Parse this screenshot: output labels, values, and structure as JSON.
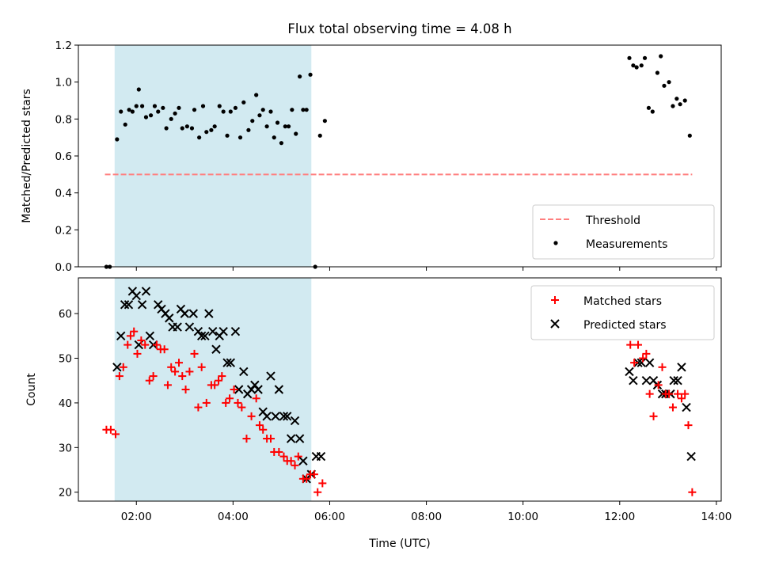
{
  "chart_data": [
    {
      "type": "scatter",
      "title": "Flux total observing time = 4.08 h",
      "xlabel": "",
      "ylabel": "Matched/Predicted stars",
      "ylim": [
        0,
        1.2
      ],
      "yticks": [
        "0.0",
        "0.2",
        "0.4",
        "0.6",
        "0.8",
        "1.0",
        "1.2"
      ],
      "xlim_hours": [
        0.8,
        14.1
      ],
      "highlight_span_hours": [
        1.55,
        5.62
      ],
      "highlight_color": "#add8e6",
      "threshold": {
        "name": "Threshold",
        "value": 0.5,
        "x_range_hours": [
          1.35,
          13.5
        ],
        "color": "#ff7f7f",
        "style": "dashed"
      },
      "series": [
        {
          "name": "Measurements",
          "marker": "dot",
          "color": "#000000",
          "points": [
            [
              1.38,
              0.0
            ],
            [
              1.45,
              0.0
            ],
            [
              1.6,
              0.69
            ],
            [
              1.68,
              0.84
            ],
            [
              1.77,
              0.77
            ],
            [
              1.85,
              0.85
            ],
            [
              1.92,
              0.84
            ],
            [
              2.0,
              0.87
            ],
            [
              2.05,
              0.96
            ],
            [
              2.12,
              0.87
            ],
            [
              2.2,
              0.81
            ],
            [
              2.3,
              0.82
            ],
            [
              2.38,
              0.87
            ],
            [
              2.45,
              0.84
            ],
            [
              2.55,
              0.86
            ],
            [
              2.62,
              0.75
            ],
            [
              2.72,
              0.8
            ],
            [
              2.8,
              0.83
            ],
            [
              2.88,
              0.86
            ],
            [
              2.95,
              0.75
            ],
            [
              3.05,
              0.76
            ],
            [
              3.15,
              0.75
            ],
            [
              3.2,
              0.85
            ],
            [
              3.3,
              0.7
            ],
            [
              3.38,
              0.87
            ],
            [
              3.45,
              0.73
            ],
            [
              3.55,
              0.74
            ],
            [
              3.62,
              0.76
            ],
            [
              3.72,
              0.87
            ],
            [
              3.8,
              0.84
            ],
            [
              3.88,
              0.71
            ],
            [
              3.95,
              0.84
            ],
            [
              4.05,
              0.86
            ],
            [
              4.15,
              0.7
            ],
            [
              4.22,
              0.89
            ],
            [
              4.32,
              0.74
            ],
            [
              4.4,
              0.79
            ],
            [
              4.48,
              0.93
            ],
            [
              4.55,
              0.82
            ],
            [
              4.62,
              0.85
            ],
            [
              4.7,
              0.76
            ],
            [
              4.78,
              0.84
            ],
            [
              4.85,
              0.7
            ],
            [
              4.92,
              0.78
            ],
            [
              5.0,
              0.67
            ],
            [
              5.08,
              0.76
            ],
            [
              5.15,
              0.76
            ],
            [
              5.22,
              0.85
            ],
            [
              5.3,
              0.72
            ],
            [
              5.38,
              1.03
            ],
            [
              5.45,
              0.85
            ],
            [
              5.52,
              0.85
            ],
            [
              5.6,
              1.04
            ],
            [
              5.7,
              0.0
            ],
            [
              5.8,
              0.71
            ],
            [
              5.9,
              0.79
            ],
            [
              12.2,
              1.13
            ],
            [
              12.28,
              1.09
            ],
            [
              12.35,
              1.08
            ],
            [
              12.45,
              1.09
            ],
            [
              12.52,
              1.13
            ],
            [
              12.6,
              0.86
            ],
            [
              12.68,
              0.84
            ],
            [
              12.78,
              1.05
            ],
            [
              12.85,
              1.14
            ],
            [
              12.92,
              0.98
            ],
            [
              13.02,
              1.0
            ],
            [
              13.1,
              0.87
            ],
            [
              13.18,
              0.91
            ],
            [
              13.25,
              0.88
            ],
            [
              13.35,
              0.9
            ],
            [
              13.45,
              0.71
            ]
          ]
        }
      ],
      "legend": {
        "position": "lower-right",
        "entries": [
          "Threshold",
          "Measurements"
        ]
      }
    },
    {
      "type": "scatter",
      "title": "",
      "xlabel": "Time (UTC)",
      "ylabel": "Count",
      "ylim": [
        18,
        68
      ],
      "yticks": [
        "20",
        "30",
        "40",
        "50",
        "60"
      ],
      "xlim_hours": [
        0.8,
        14.1
      ],
      "xticks": [
        "02:00",
        "04:00",
        "06:00",
        "08:00",
        "10:00",
        "12:00",
        "14:00"
      ],
      "highlight_span_hours": [
        1.55,
        5.62
      ],
      "series": [
        {
          "name": "Matched stars",
          "marker": "plus",
          "color": "#ff0000",
          "points": [
            [
              1.38,
              34
            ],
            [
              1.47,
              34
            ],
            [
              1.57,
              33
            ],
            [
              1.65,
              46
            ],
            [
              1.73,
              48
            ],
            [
              1.82,
              53
            ],
            [
              1.88,
              55
            ],
            [
              1.95,
              56
            ],
            [
              2.02,
              51
            ],
            [
              2.1,
              54
            ],
            [
              2.18,
              53
            ],
            [
              2.27,
              45
            ],
            [
              2.35,
              46
            ],
            [
              2.42,
              53
            ],
            [
              2.5,
              52
            ],
            [
              2.58,
              52
            ],
            [
              2.65,
              44
            ],
            [
              2.72,
              48
            ],
            [
              2.8,
              47
            ],
            [
              2.88,
              49
            ],
            [
              2.95,
              46
            ],
            [
              3.02,
              43
            ],
            [
              3.1,
              47
            ],
            [
              3.2,
              51
            ],
            [
              3.28,
              39
            ],
            [
              3.35,
              48
            ],
            [
              3.45,
              40
            ],
            [
              3.55,
              44
            ],
            [
              3.62,
              44
            ],
            [
              3.7,
              45
            ],
            [
              3.77,
              46
            ],
            [
              3.85,
              40
            ],
            [
              3.93,
              41
            ],
            [
              4.02,
              43
            ],
            [
              4.1,
              40
            ],
            [
              4.18,
              39
            ],
            [
              4.28,
              32
            ],
            [
              4.38,
              37
            ],
            [
              4.48,
              41
            ],
            [
              4.55,
              35
            ],
            [
              4.62,
              34
            ],
            [
              4.7,
              32
            ],
            [
              4.78,
              32
            ],
            [
              4.85,
              29
            ],
            [
              4.95,
              29
            ],
            [
              5.05,
              28
            ],
            [
              5.12,
              27
            ],
            [
              5.2,
              27
            ],
            [
              5.28,
              26
            ],
            [
              5.35,
              28
            ],
            [
              5.45,
              23
            ],
            [
              5.52,
              23
            ],
            [
              5.6,
              24
            ],
            [
              5.68,
              24
            ],
            [
              5.75,
              20
            ],
            [
              5.85,
              22
            ],
            [
              12.22,
              53
            ],
            [
              12.3,
              49
            ],
            [
              12.38,
              53
            ],
            [
              12.48,
              50
            ],
            [
              12.55,
              51
            ],
            [
              12.62,
              42
            ],
            [
              12.7,
              37
            ],
            [
              12.8,
              44
            ],
            [
              12.88,
              48
            ],
            [
              12.95,
              42
            ],
            [
              13.02,
              42
            ],
            [
              13.1,
              39
            ],
            [
              13.2,
              42
            ],
            [
              13.28,
              41
            ],
            [
              13.35,
              42
            ],
            [
              13.42,
              35
            ],
            [
              13.5,
              20
            ]
          ]
        },
        {
          "name": "Predicted stars",
          "marker": "x",
          "color": "#000000",
          "points": [
            [
              1.6,
              48
            ],
            [
              1.68,
              55
            ],
            [
              1.76,
              62
            ],
            [
              1.84,
              62
            ],
            [
              1.92,
              65
            ],
            [
              2.0,
              64
            ],
            [
              2.05,
              53
            ],
            [
              2.12,
              62
            ],
            [
              2.2,
              65
            ],
            [
              2.28,
              55
            ],
            [
              2.35,
              53
            ],
            [
              2.45,
              62
            ],
            [
              2.52,
              61
            ],
            [
              2.6,
              60
            ],
            [
              2.68,
              59
            ],
            [
              2.75,
              57
            ],
            [
              2.85,
              57
            ],
            [
              2.92,
              61
            ],
            [
              3.0,
              60
            ],
            [
              3.1,
              57
            ],
            [
              3.18,
              60
            ],
            [
              3.28,
              56
            ],
            [
              3.35,
              55
            ],
            [
              3.42,
              55
            ],
            [
              3.5,
              60
            ],
            [
              3.58,
              56
            ],
            [
              3.65,
              52
            ],
            [
              3.72,
              55
            ],
            [
              3.8,
              56
            ],
            [
              3.88,
              49
            ],
            [
              3.95,
              49
            ],
            [
              4.05,
              56
            ],
            [
              4.12,
              43
            ],
            [
              4.22,
              47
            ],
            [
              4.3,
              42
            ],
            [
              4.38,
              43
            ],
            [
              4.45,
              44
            ],
            [
              4.52,
              43
            ],
            [
              4.62,
              38
            ],
            [
              4.7,
              37
            ],
            [
              4.78,
              46
            ],
            [
              4.88,
              37
            ],
            [
              4.95,
              43
            ],
            [
              5.05,
              37
            ],
            [
              5.12,
              37
            ],
            [
              5.2,
              32
            ],
            [
              5.28,
              36
            ],
            [
              5.38,
              32
            ],
            [
              5.45,
              27
            ],
            [
              5.52,
              23
            ],
            [
              5.62,
              24
            ],
            [
              5.72,
              28
            ],
            [
              5.82,
              28
            ],
            [
              12.2,
              47
            ],
            [
              12.28,
              45
            ],
            [
              12.38,
              49
            ],
            [
              12.45,
              49
            ],
            [
              12.55,
              45
            ],
            [
              12.62,
              49
            ],
            [
              12.7,
              45
            ],
            [
              12.78,
              44
            ],
            [
              12.88,
              42
            ],
            [
              12.95,
              42
            ],
            [
              13.05,
              42
            ],
            [
              13.12,
              45
            ],
            [
              13.2,
              45
            ],
            [
              13.28,
              48
            ],
            [
              13.38,
              39
            ],
            [
              13.48,
              28
            ]
          ]
        }
      ],
      "legend": {
        "position": "upper-right",
        "entries": [
          "Matched stars",
          "Predicted stars"
        ]
      }
    }
  ]
}
